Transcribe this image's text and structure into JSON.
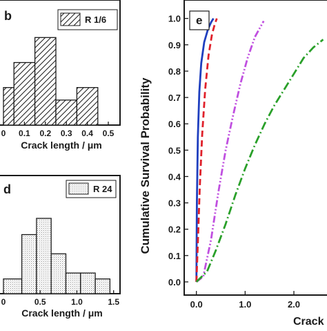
{
  "chart_data": [
    {
      "panel": "b",
      "type": "bar",
      "legend": "R 1/6",
      "legend_position": "top-right",
      "hatch": "diagonal",
      "xlabel": "Crack length / μm",
      "ylabel": "",
      "x_ticks": [
        0.0,
        0.1,
        0.2,
        0.3,
        0.4,
        0.5
      ],
      "x_tick_labels": [
        "0",
        "0.1",
        "0.2",
        "0.3",
        "0.4",
        "0.5"
      ],
      "xlim": [
        0.0,
        0.5
      ],
      "ylim": [
        0,
        10
      ],
      "bins": [
        {
          "x0": 0.0,
          "x1": 0.05,
          "value": 3
        },
        {
          "x0": 0.05,
          "x1": 0.15,
          "value": 5
        },
        {
          "x0": 0.15,
          "x1": 0.25,
          "value": 7
        },
        {
          "x0": 0.25,
          "x1": 0.35,
          "value": 2
        },
        {
          "x0": 0.35,
          "x1": 0.45,
          "value": 3
        }
      ]
    },
    {
      "panel": "d",
      "type": "bar",
      "legend": "R 24",
      "legend_position": "top-right",
      "hatch": "dotted",
      "xlabel": "Crack length / μm",
      "ylabel": "",
      "x_ticks": [
        0.0,
        0.5,
        1.0,
        1.5
      ],
      "x_tick_labels": [
        "0",
        "0.5",
        "1.0",
        "1.5"
      ],
      "xlim": [
        0.0,
        1.55
      ],
      "ylim": [
        0,
        8
      ],
      "bins": [
        {
          "x0": 0.0,
          "x1": 0.25,
          "value": 1
        },
        {
          "x0": 0.25,
          "x1": 0.45,
          "value": 4
        },
        {
          "x0": 0.45,
          "x1": 0.65,
          "value": 5.1
        },
        {
          "x0": 0.65,
          "x1": 0.85,
          "value": 2.7
        },
        {
          "x0": 0.85,
          "x1": 1.05,
          "value": 1.4
        },
        {
          "x0": 1.05,
          "x1": 1.25,
          "value": 1.4
        },
        {
          "x0": 1.25,
          "x1": 1.45,
          "value": 1
        }
      ]
    },
    {
      "panel": "e",
      "type": "line",
      "xlabel": "Crack",
      "ylabel": "Cumulative Survival Probability",
      "xlim": [
        -0.25,
        2.75
      ],
      "ylim": [
        -0.05,
        1.07
      ],
      "x_ticks": [
        0.0,
        1.0,
        2.0
      ],
      "x_tick_labels": [
        "0.0",
        "1.0",
        "2.0"
      ],
      "y_ticks": [
        0.0,
        0.1,
        0.2,
        0.3,
        0.4,
        0.5,
        0.6,
        0.7,
        0.8,
        0.9,
        1.0
      ],
      "y_tick_labels": [
        "0.0",
        "0.1",
        "0.2",
        "0.3",
        "0.4",
        "0.5",
        "0.6",
        "0.7",
        "0.8",
        "0.9",
        "1.0"
      ],
      "series": [
        {
          "color": "#1f3fbf",
          "dash": "solid",
          "points": [
            [
              0.0,
              0.0
            ],
            [
              0.01,
              0.3
            ],
            [
              0.03,
              0.55
            ],
            [
              0.06,
              0.72
            ],
            [
              0.1,
              0.83
            ],
            [
              0.16,
              0.91
            ],
            [
              0.24,
              0.96
            ],
            [
              0.3,
              0.985
            ],
            [
              0.35,
              1.0
            ]
          ]
        },
        {
          "color": "#e0202a",
          "dash": "dashed",
          "points": [
            [
              0.0,
              0.0
            ],
            [
              0.03,
              0.15
            ],
            [
              0.07,
              0.36
            ],
            [
              0.12,
              0.56
            ],
            [
              0.18,
              0.73
            ],
            [
              0.25,
              0.86
            ],
            [
              0.32,
              0.94
            ],
            [
              0.38,
              0.98
            ],
            [
              0.42,
              1.0
            ]
          ]
        },
        {
          "color": "#c050e0",
          "dash": "dash-dot-dot",
          "points": [
            [
              0.0,
              0.0
            ],
            [
              0.14,
              0.02
            ],
            [
              0.3,
              0.16
            ],
            [
              0.45,
              0.34
            ],
            [
              0.6,
              0.5
            ],
            [
              0.75,
              0.63
            ],
            [
              0.9,
              0.75
            ],
            [
              1.05,
              0.85
            ],
            [
              1.2,
              0.93
            ],
            [
              1.38,
              0.99
            ]
          ]
        },
        {
          "color": "#2aa02a",
          "dash": "dash-dot",
          "points": [
            [
              0.0,
              0.0
            ],
            [
              0.22,
              0.04
            ],
            [
              0.4,
              0.12
            ],
            [
              0.6,
              0.22
            ],
            [
              0.8,
              0.33
            ],
            [
              1.0,
              0.43
            ],
            [
              1.2,
              0.52
            ],
            [
              1.4,
              0.6
            ],
            [
              1.6,
              0.67
            ],
            [
              1.8,
              0.73
            ],
            [
              2.0,
              0.79
            ],
            [
              2.2,
              0.85
            ],
            [
              2.4,
              0.89
            ],
            [
              2.6,
              0.92
            ]
          ]
        }
      ]
    }
  ],
  "panel_labels": {
    "b": "b",
    "d": "d",
    "e": "e"
  },
  "colors": {
    "axis": "#1a1a1a",
    "bar_stroke": "#1a1a1a",
    "legend_stroke": "#1a1a1a"
  }
}
